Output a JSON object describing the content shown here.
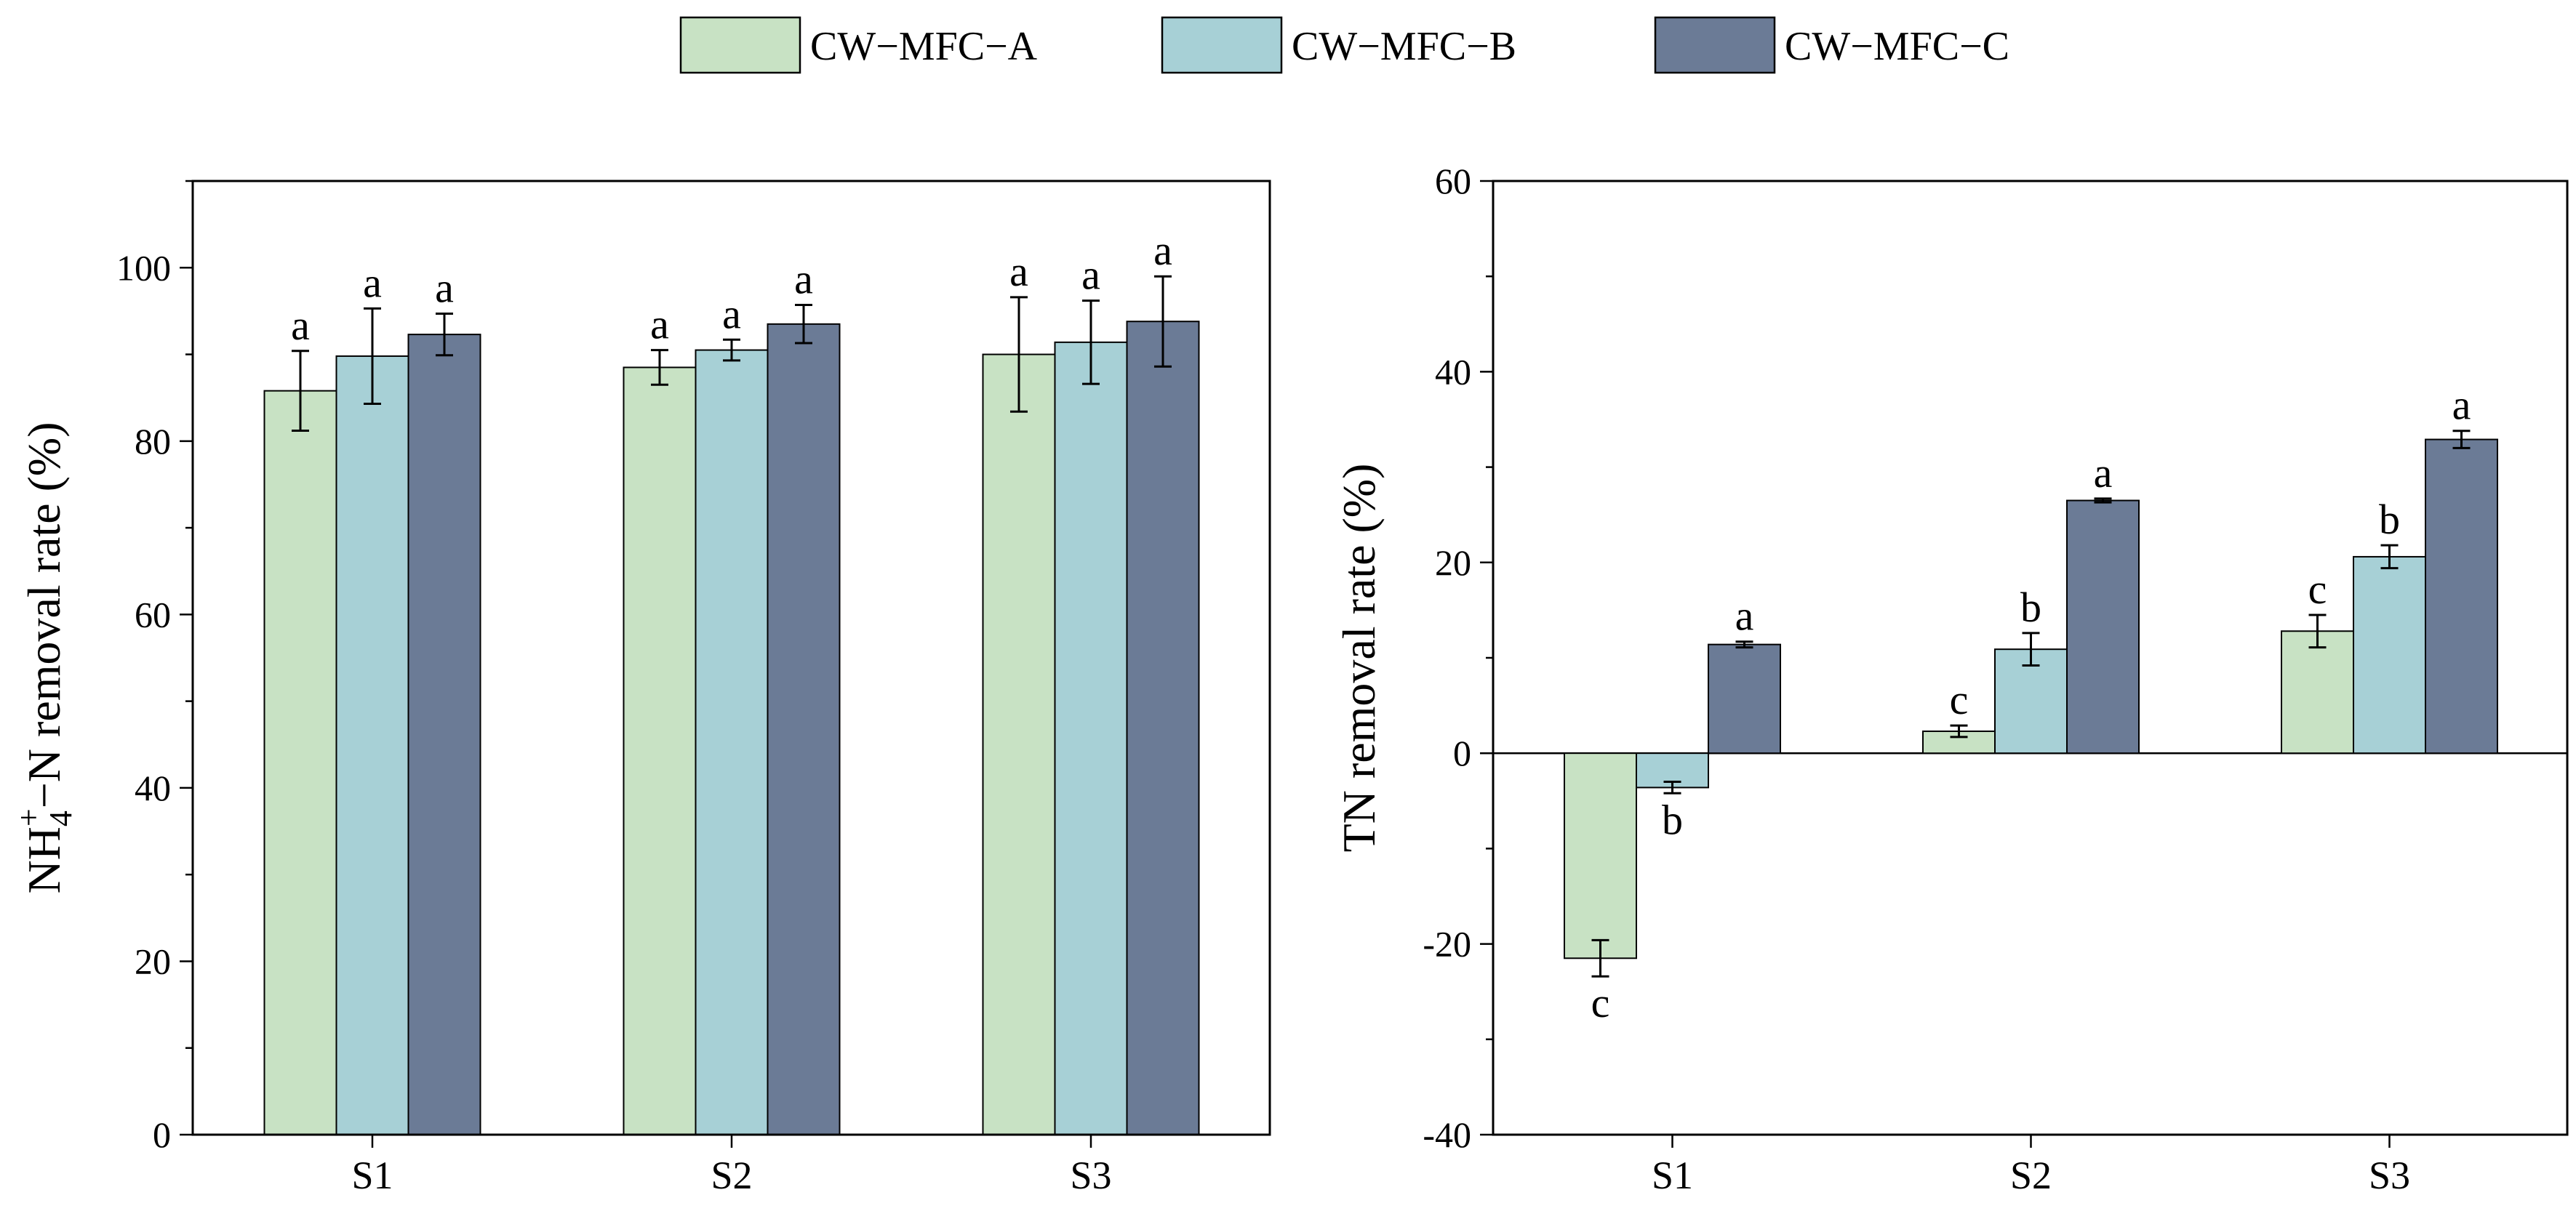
{
  "legend": [
    "CW−MFC−A",
    "CW−MFC−B",
    "CW−MFC−C"
  ],
  "colors": [
    "#c8e2c4",
    "#a7d0d6",
    "#6b7b96"
  ],
  "chart_data": [
    {
      "type": "bar",
      "panel": "left",
      "title": "",
      "categories": [
        "S1",
        "S2",
        "S3"
      ],
      "ylabel": {
        "main": "NH",
        "sub": "4",
        "sup": "+",
        "rest": "−N removal rate (%)"
      },
      "ylim": [
        0,
        110
      ],
      "yticks": [
        0,
        20,
        40,
        60,
        80,
        100
      ],
      "yminor": 10,
      "series": [
        {
          "name": "CW−MFC−A",
          "values": [
            85.8,
            88.5,
            90.0
          ],
          "errors": [
            4.6,
            2.0,
            6.6
          ],
          "labels": [
            "a",
            "a",
            "a"
          ]
        },
        {
          "name": "CW−MFC−B",
          "values": [
            89.8,
            90.5,
            91.4
          ],
          "errors": [
            5.5,
            1.2,
            4.8
          ],
          "labels": [
            "a",
            "a",
            "a"
          ]
        },
        {
          "name": "CW−MFC−C",
          "values": [
            92.3,
            93.5,
            93.8
          ],
          "errors": [
            2.4,
            2.2,
            5.2
          ],
          "labels": [
            "a",
            "a",
            "a"
          ]
        }
      ]
    },
    {
      "type": "bar",
      "panel": "right",
      "title": "",
      "categories": [
        "S1",
        "S2",
        "S3"
      ],
      "ylabel": {
        "main": "TN removal rate (%)"
      },
      "ylim": [
        -40,
        60
      ],
      "yticks": [
        -40,
        -20,
        0,
        20,
        40,
        60
      ],
      "yminor": 10,
      "series": [
        {
          "name": "CW−MFC−A",
          "values": [
            -21.5,
            2.3,
            12.8
          ],
          "errors": [
            1.9,
            0.6,
            1.7
          ],
          "labels": [
            "c",
            "c",
            "c"
          ]
        },
        {
          "name": "CW−MFC−B",
          "values": [
            -3.6,
            10.9,
            20.6
          ],
          "errors": [
            0.6,
            1.7,
            1.2
          ],
          "labels": [
            "b",
            "b",
            "b"
          ]
        },
        {
          "name": "CW−MFC−C",
          "values": [
            11.4,
            26.5,
            32.9
          ],
          "errors": [
            0.3,
            0.2,
            0.9
          ],
          "labels": [
            "a",
            "a",
            "a"
          ]
        }
      ]
    }
  ]
}
